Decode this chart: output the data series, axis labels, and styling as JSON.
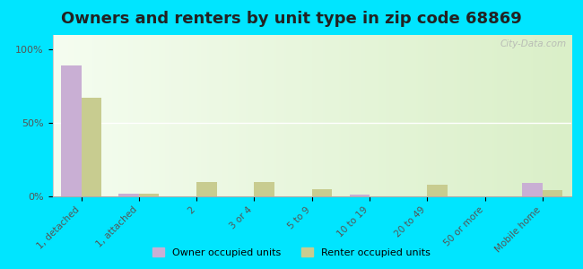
{
  "title": "Owners and renters by unit type in zip code 68869",
  "categories": [
    "1, detached",
    "1, attached",
    "2",
    "3 or 4",
    "5 to 9",
    "10 to 19",
    "20 to 49",
    "50 or more",
    "Mobile home"
  ],
  "owner_values": [
    89,
    2,
    0,
    0,
    0,
    1,
    0,
    0,
    9
  ],
  "renter_values": [
    67,
    2,
    10,
    10,
    5,
    0,
    8,
    0,
    4
  ],
  "owner_color": "#c9afd4",
  "renter_color": "#c8cc90",
  "background_color": "#00e5ff",
  "yticks": [
    0,
    50,
    100
  ],
  "ylim": [
    0,
    110
  ],
  "watermark": "City-Data.com",
  "legend_owner": "Owner occupied units",
  "legend_renter": "Renter occupied units",
  "bar_width": 0.35,
  "title_fontsize": 13
}
